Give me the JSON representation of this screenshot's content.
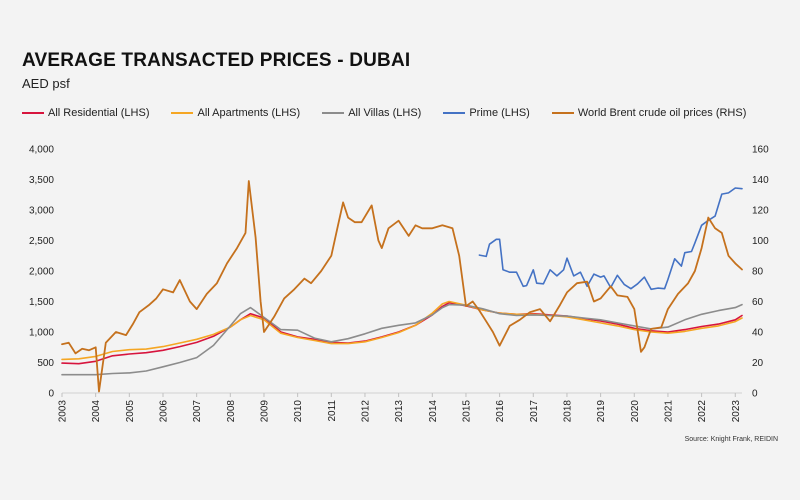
{
  "title": "AVERAGE TRANSACTED PRICES - DUBAI",
  "subtitle": "AED psf",
  "source": "Source: Knight Frank, REIDIN",
  "chart_data": {
    "type": "line",
    "title": "AVERAGE TRANSACTED PRICES - DUBAI",
    "ylabel": "AED psf",
    "x_ticks": [
      "2003",
      "2004",
      "2005",
      "2006",
      "2007",
      "2008",
      "2009",
      "2010",
      "2011",
      "2012",
      "2013",
      "2014",
      "2015",
      "2016",
      "2017",
      "2018",
      "2019",
      "2020",
      "2021",
      "2022",
      "2023"
    ],
    "x_range": [
      2003,
      2023.2
    ],
    "y_left": {
      "range": [
        0,
        4000
      ],
      "ticks": [
        0,
        500,
        1000,
        1500,
        2000,
        2500,
        3000,
        3500,
        4000
      ],
      "tick_labels": [
        "0",
        "500",
        "1,000",
        "1,500",
        "2,000",
        "2,500",
        "3,000",
        "3,500",
        "4,000"
      ]
    },
    "y_right": {
      "range": [
        0,
        160
      ],
      "ticks": [
        0,
        20,
        40,
        60,
        80,
        100,
        120,
        140,
        160
      ],
      "tick_labels": [
        "0",
        "20",
        "40",
        "60",
        "80",
        "100",
        "120",
        "140",
        "160"
      ]
    },
    "series": [
      {
        "name": "All Residential (LHS)",
        "axis": "left",
        "color": "#d7143d",
        "x": [
          2003.0,
          2003.5,
          2004.0,
          2004.5,
          2005.0,
          2005.5,
          2006.0,
          2006.5,
          2007.0,
          2007.5,
          2008.0,
          2008.3,
          2008.6,
          2009.0,
          2009.5,
          2010.0,
          2010.5,
          2011.0,
          2011.5,
          2012.0,
          2012.5,
          2013.0,
          2013.5,
          2014.0,
          2014.3,
          2014.5,
          2015.0,
          2015.5,
          2016.0,
          2016.5,
          2017.0,
          2017.5,
          2018.0,
          2018.5,
          2019.0,
          2019.5,
          2020.0,
          2020.5,
          2021.0,
          2021.5,
          2022.0,
          2022.5,
          2023.0,
          2023.2
        ],
        "values": [
          490,
          480,
          520,
          610,
          640,
          660,
          700,
          760,
          830,
          930,
          1080,
          1200,
          1300,
          1230,
          1000,
          920,
          880,
          830,
          820,
          850,
          920,
          1000,
          1110,
          1280,
          1420,
          1480,
          1430,
          1360,
          1310,
          1290,
          1300,
          1280,
          1260,
          1220,
          1180,
          1130,
          1060,
          1020,
          1000,
          1040,
          1090,
          1130,
          1200,
          1270
        ]
      },
      {
        "name": "All Apartments (LHS)",
        "axis": "left",
        "color": "#f5a623",
        "x": [
          2003.0,
          2003.5,
          2004.0,
          2004.5,
          2005.0,
          2005.5,
          2006.0,
          2006.5,
          2007.0,
          2007.5,
          2008.0,
          2008.3,
          2008.6,
          2009.0,
          2009.5,
          2010.0,
          2010.5,
          2011.0,
          2011.5,
          2012.0,
          2012.5,
          2013.0,
          2013.5,
          2014.0,
          2014.3,
          2014.5,
          2015.0,
          2015.5,
          2016.0,
          2016.5,
          2017.0,
          2017.5,
          2018.0,
          2018.5,
          2019.0,
          2019.5,
          2020.0,
          2020.5,
          2021.0,
          2021.5,
          2022.0,
          2022.5,
          2023.0,
          2023.2
        ],
        "values": [
          550,
          560,
          600,
          680,
          710,
          720,
          760,
          820,
          880,
          960,
          1080,
          1200,
          1270,
          1200,
          980,
          910,
          860,
          810,
          810,
          840,
          910,
          990,
          1110,
          1310,
          1460,
          1500,
          1440,
          1360,
          1310,
          1290,
          1290,
          1270,
          1250,
          1200,
          1150,
          1100,
          1040,
          1000,
          980,
          1010,
          1060,
          1100,
          1170,
          1230
        ]
      },
      {
        "name": "All Villas (LHS)",
        "axis": "left",
        "color": "#8c8c8c",
        "x": [
          2003.0,
          2003.5,
          2004.0,
          2004.5,
          2005.0,
          2005.5,
          2006.0,
          2006.5,
          2007.0,
          2007.5,
          2008.0,
          2008.3,
          2008.6,
          2009.0,
          2009.5,
          2010.0,
          2010.5,
          2011.0,
          2011.5,
          2012.0,
          2012.5,
          2013.0,
          2013.5,
          2014.0,
          2014.3,
          2014.5,
          2015.0,
          2015.5,
          2016.0,
          2016.5,
          2017.0,
          2017.5,
          2018.0,
          2018.5,
          2019.0,
          2019.5,
          2020.0,
          2020.5,
          2021.0,
          2021.5,
          2022.0,
          2022.5,
          2023.0,
          2023.2
        ],
        "values": [
          300,
          300,
          300,
          320,
          330,
          360,
          430,
          500,
          580,
          780,
          1100,
          1300,
          1400,
          1240,
          1040,
          1030,
          900,
          840,
          890,
          970,
          1060,
          1110,
          1150,
          1280,
          1400,
          1450,
          1440,
          1380,
          1300,
          1270,
          1280,
          1270,
          1260,
          1230,
          1200,
          1150,
          1100,
          1050,
          1080,
          1200,
          1290,
          1350,
          1400,
          1450
        ]
      },
      {
        "name": "Prime (LHS)",
        "axis": "left",
        "color": "#4472c4",
        "x": [
          2015.4,
          2015.6,
          2015.7,
          2015.9,
          2016.0,
          2016.1,
          2016.3,
          2016.5,
          2016.7,
          2016.8,
          2017.0,
          2017.1,
          2017.3,
          2017.5,
          2017.7,
          2017.9,
          2018.0,
          2018.2,
          2018.4,
          2018.6,
          2018.8,
          2019.0,
          2019.1,
          2019.3,
          2019.5,
          2019.7,
          2019.9,
          2020.1,
          2020.3,
          2020.5,
          2020.7,
          2020.9,
          2021.0,
          2021.2,
          2021.4,
          2021.5,
          2021.7,
          2021.8,
          2022.0,
          2022.2,
          2022.4,
          2022.6,
          2022.8,
          2023.0,
          2023.2
        ],
        "values": [
          2260,
          2240,
          2440,
          2520,
          2520,
          2020,
          1980,
          1980,
          1750,
          1760,
          2020,
          1800,
          1790,
          2020,
          1920,
          2020,
          2210,
          1920,
          1980,
          1750,
          1950,
          1900,
          1920,
          1730,
          1930,
          1780,
          1710,
          1790,
          1900,
          1700,
          1720,
          1710,
          1860,
          2200,
          2080,
          2300,
          2320,
          2460,
          2750,
          2830,
          2900,
          3260,
          3280,
          3360,
          3350
        ]
      },
      {
        "name": "World Brent crude oil prices (RHS)",
        "axis": "right",
        "color": "#c5711d",
        "x": [
          2003.0,
          2003.2,
          2003.4,
          2003.6,
          2003.8,
          2004.0,
          2004.1,
          2004.3,
          2004.6,
          2004.9,
          2005.1,
          2005.3,
          2005.6,
          2005.8,
          2006.0,
          2006.3,
          2006.5,
          2006.8,
          2007.0,
          2007.3,
          2007.6,
          2007.9,
          2008.2,
          2008.45,
          2008.55,
          2008.75,
          2008.9,
          2009.0,
          2009.3,
          2009.6,
          2009.9,
          2010.2,
          2010.4,
          2010.7,
          2011.0,
          2011.2,
          2011.35,
          2011.5,
          2011.7,
          2011.9,
          2012.2,
          2012.4,
          2012.5,
          2012.7,
          2013.0,
          2013.3,
          2013.5,
          2013.7,
          2014.0,
          2014.3,
          2014.6,
          2014.8,
          2015.0,
          2015.2,
          2015.4,
          2015.6,
          2015.8,
          2016.0,
          2016.3,
          2016.6,
          2016.9,
          2017.2,
          2017.5,
          2017.8,
          2018.0,
          2018.3,
          2018.6,
          2018.8,
          2019.0,
          2019.3,
          2019.5,
          2019.8,
          2020.0,
          2020.2,
          2020.3,
          2020.5,
          2020.8,
          2021.0,
          2021.3,
          2021.6,
          2021.8,
          2022.0,
          2022.2,
          2022.4,
          2022.6,
          2022.8,
          2023.0,
          2023.2
        ],
        "values": [
          32,
          33,
          26,
          29,
          28,
          30,
          1,
          33,
          40,
          38,
          45,
          53,
          58,
          62,
          68,
          66,
          74,
          60,
          55,
          65,
          72,
          85,
          95,
          105,
          139,
          102,
          60,
          40,
          50,
          62,
          68,
          75,
          72,
          80,
          90,
          110,
          125,
          115,
          112,
          112,
          123,
          100,
          95,
          108,
          113,
          103,
          110,
          108,
          108,
          110,
          108,
          90,
          57,
          60,
          54,
          47,
          40,
          31,
          44,
          48,
          53,
          55,
          47,
          58,
          66,
          72,
          73,
          60,
          62,
          70,
          64,
          63,
          55,
          27,
          30,
          42,
          43,
          55,
          65,
          72,
          80,
          95,
          115,
          108,
          105,
          90,
          85,
          81
        ]
      }
    ]
  }
}
